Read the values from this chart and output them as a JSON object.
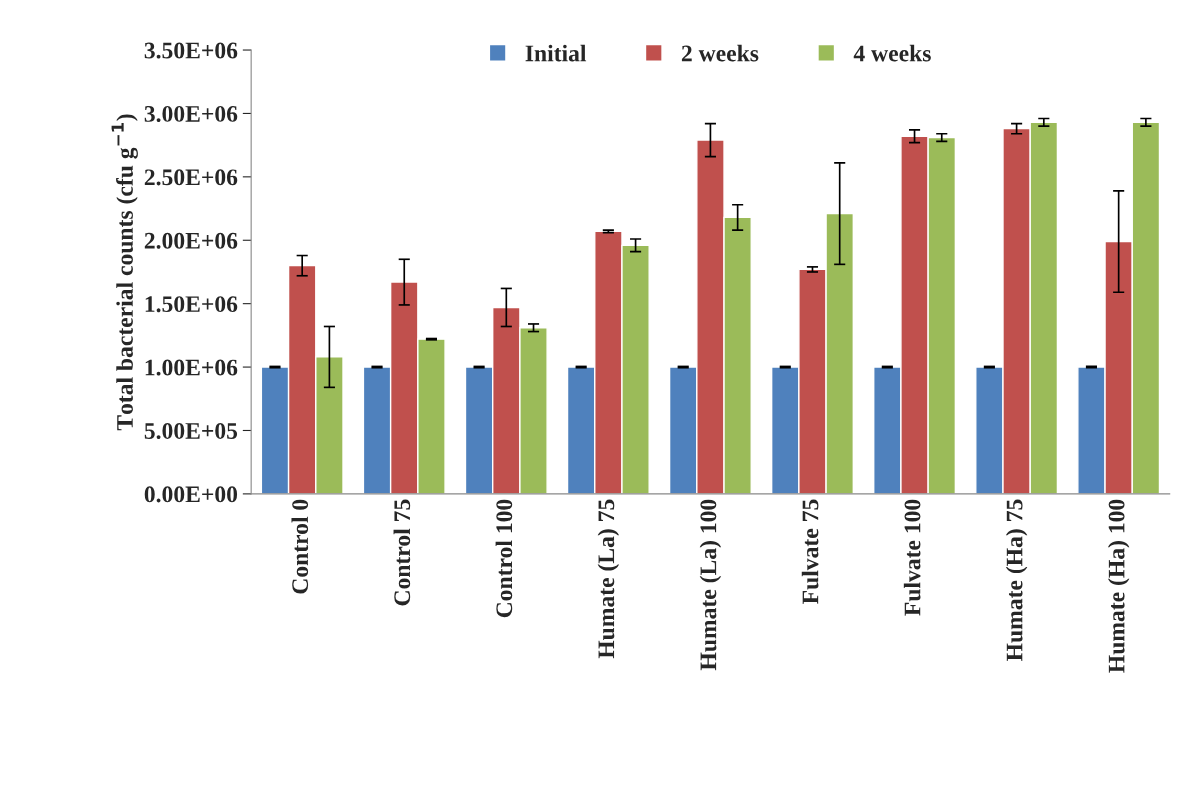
{
  "chart_data": {
    "type": "bar",
    "ylabel": "Total bacterial counts (cfu g$^{−1}$)",
    "categories": [
      "Control 0",
      "Control 75",
      "Control 100",
      "Humate (La) 75",
      "Humate (La) 100",
      "Fulvate 75",
      "Fulvate 100",
      "Humate (Ha) 75",
      "Humate (Ha) 100"
    ],
    "series": [
      {
        "name": "Initial",
        "color": "#4f81bd",
        "values": [
          1000000,
          1000000,
          1000000,
          1000000,
          1000000,
          1000000,
          1000000,
          1000000,
          1000000
        ],
        "errors": [
          5000,
          5000,
          5000,
          5000,
          5000,
          5000,
          5000,
          5000,
          5000
        ]
      },
      {
        "name": "2 weeks",
        "color": "#c0504d",
        "values": [
          1800000,
          1670000,
          1470000,
          2070000,
          2790000,
          1770000,
          2820000,
          2880000,
          1990000
        ],
        "errors": [
          80000,
          180000,
          150000,
          10000,
          130000,
          20000,
          50000,
          40000,
          400000
        ]
      },
      {
        "name": "4 weeks",
        "color": "#9bbb59",
        "values": [
          1080000,
          1220000,
          1310000,
          1960000,
          2180000,
          2210000,
          2810000,
          2930000,
          2930000
        ],
        "errors": [
          240000,
          5000,
          30000,
          50000,
          100000,
          400000,
          30000,
          30000,
          30000
        ]
      }
    ],
    "ylim": [
      0,
      3500000
    ],
    "yticks": [
      {
        "value": 0,
        "label": "0.00E+00"
      },
      {
        "value": 500000,
        "label": "5.00E+05"
      },
      {
        "value": 1000000,
        "label": "1.00E+06"
      },
      {
        "value": 1500000,
        "label": "1.50E+06"
      },
      {
        "value": 2000000,
        "label": "2.00E+06"
      },
      {
        "value": 2500000,
        "label": "2.50E+06"
      },
      {
        "value": 3000000,
        "label": "3.00E+06"
      },
      {
        "value": 3500000,
        "label": "3.50E+06"
      }
    ],
    "legend": "top",
    "grid": false
  }
}
